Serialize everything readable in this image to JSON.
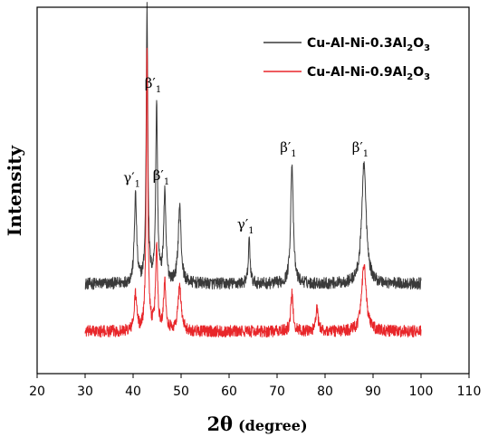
{
  "chart_data": {
    "type": "line",
    "xlabel": "2θ (degree)",
    "xlabel_main": "2θ",
    "xlabel_unit": "(degree)",
    "ylabel": "Intensity",
    "xlim": [
      20,
      110
    ],
    "ylim": [
      0,
      100
    ],
    "xticks": [
      20,
      30,
      40,
      50,
      60,
      70,
      80,
      90,
      100,
      110
    ],
    "x_tick_labels": [
      "20",
      "30",
      "40",
      "50",
      "60",
      "70",
      "80",
      "90",
      "100",
      "110"
    ],
    "y_ticks_shown": false,
    "grid": false,
    "legend_position": "top-right",
    "x_range_of_data": [
      30,
      100
    ],
    "series": [
      {
        "name": "Cu-Al-Ni-0.3Al2O3",
        "legend_main": "Cu-Al-Ni-0.3Al",
        "legend_sub1": "2",
        "legend_mid": "O",
        "legend_sub2": "3",
        "color": "#3a3a3a",
        "baseline": 24.5,
        "noise": 1.6,
        "peaks": [
          {
            "x": 40.5,
            "height": 24,
            "width": 0.28
          },
          {
            "x": 42.9,
            "height": 75,
            "width": 0.2
          },
          {
            "x": 44.9,
            "height": 49,
            "width": 0.22
          },
          {
            "x": 46.6,
            "height": 24,
            "width": 0.28
          },
          {
            "x": 49.7,
            "height": 21,
            "width": 0.35
          },
          {
            "x": 64.2,
            "height": 12,
            "width": 0.22
          },
          {
            "x": 73.1,
            "height": 33,
            "width": 0.32
          },
          {
            "x": 88.1,
            "height": 33,
            "width": 0.55
          }
        ]
      },
      {
        "name": "Cu-Al-Ni-0.9Al2O3",
        "legend_main": "Cu-Al-Ni-0.9Al",
        "legend_sub1": "2",
        "legend_mid": "O",
        "legend_sub2": "3",
        "color": "#e8262a",
        "baseline": 11.5,
        "noise": 1.6,
        "peaks": [
          {
            "x": 40.5,
            "height": 10,
            "width": 0.3
          },
          {
            "x": 42.9,
            "height": 77,
            "width": 0.2
          },
          {
            "x": 44.9,
            "height": 23,
            "width": 0.25
          },
          {
            "x": 46.6,
            "height": 13,
            "width": 0.3
          },
          {
            "x": 49.7,
            "height": 12,
            "width": 0.4
          },
          {
            "x": 73.1,
            "height": 10,
            "width": 0.3
          },
          {
            "x": 78.3,
            "height": 6,
            "width": 0.3
          },
          {
            "x": 88.1,
            "height": 18,
            "width": 0.55
          }
        ]
      }
    ],
    "annotations": [
      {
        "label": "β′",
        "sub": "1",
        "x": 42.9
      },
      {
        "label": "β′",
        "sub": "1",
        "x": 44.9
      },
      {
        "label": "β′",
        "sub": "1",
        "x": 46.6
      },
      {
        "label": "γ′",
        "sub": "1",
        "x": 40.5
      },
      {
        "label": "γ′",
        "sub": "1",
        "x": 64.2
      },
      {
        "label": "β′",
        "sub": "1",
        "x": 73.1
      },
      {
        "label": "β′",
        "sub": "1",
        "x": 88.1
      }
    ]
  }
}
